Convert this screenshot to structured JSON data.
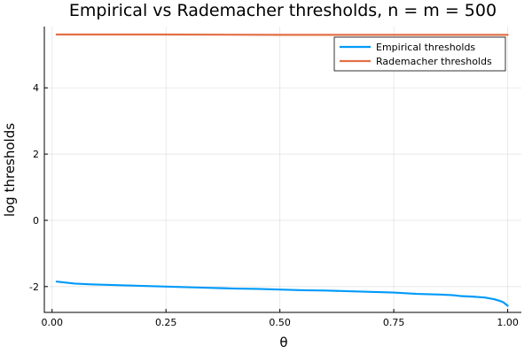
{
  "chart_data": {
    "type": "line",
    "title": "Empirical vs Rademacher thresholds, n = m = 500",
    "xlabel": "θ",
    "ylabel": "log thresholds",
    "xlim": [
      -0.017,
      1.03
    ],
    "ylim": [
      -2.78,
      5.85
    ],
    "xticks": [
      0.0,
      0.25,
      0.5,
      0.75,
      1.0
    ],
    "xtick_labels": [
      "0.00",
      "0.25",
      "0.50",
      "0.75",
      "1.00"
    ],
    "yticks": [
      -2,
      0,
      2,
      4
    ],
    "ytick_labels": [
      "-2",
      "0",
      "2",
      "4"
    ],
    "grid": true,
    "legend": "top-right",
    "series": [
      {
        "name": "Empirical thresholds",
        "color": "#009af9",
        "x": [
          0.01,
          0.03,
          0.05,
          0.08,
          0.1,
          0.15,
          0.2,
          0.25,
          0.3,
          0.35,
          0.4,
          0.45,
          0.5,
          0.55,
          0.6,
          0.65,
          0.7,
          0.75,
          0.8,
          0.85,
          0.88,
          0.9,
          0.93,
          0.95,
          0.97,
          0.98,
          0.99,
          1.0
        ],
        "y": [
          -1.85,
          -1.88,
          -1.91,
          -1.93,
          -1.94,
          -1.96,
          -1.98,
          -2.0,
          -2.02,
          -2.04,
          -2.06,
          -2.07,
          -2.09,
          -2.11,
          -2.12,
          -2.14,
          -2.16,
          -2.18,
          -2.22,
          -2.24,
          -2.26,
          -2.29,
          -2.31,
          -2.33,
          -2.38,
          -2.42,
          -2.47,
          -2.58
        ]
      },
      {
        "name": "Rademacher thresholds",
        "color": "#e26f46",
        "x": [
          0.01,
          0.25,
          0.5,
          0.75,
          1.0
        ],
        "y": [
          5.61,
          5.61,
          5.6,
          5.6,
          5.6
        ]
      }
    ]
  }
}
